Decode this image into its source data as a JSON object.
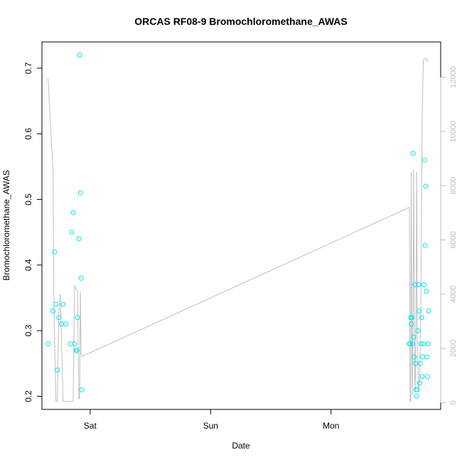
{
  "chart_data": {
    "type": "scatter",
    "title": "ORCAS RF08-9 Bromochloromethane_AWAS",
    "xlabel": "Date",
    "ylabel": "Bromochloromethane_AWAS",
    "x_unit": "days from start of Friday",
    "x_ticks": [
      {
        "value": 1,
        "label": "Sat"
      },
      {
        "value": 2,
        "label": "Sun"
      },
      {
        "value": 3,
        "label": "Mon"
      }
    ],
    "xlim": [
      0.6,
      3.91
    ],
    "ylim": [
      0.18,
      0.74
    ],
    "y_ticks": [
      0.2,
      0.3,
      0.4,
      0.5,
      0.6,
      0.7
    ],
    "y2lim": [
      -250,
      13300
    ],
    "y2_ticks": [
      0,
      2000,
      4000,
      6000,
      8000,
      10000,
      12000
    ],
    "grid": false,
    "colors": {
      "points": "#00e5ee",
      "line": "#bebebe",
      "axis": "#000000",
      "right_axis": "#bebebe"
    },
    "series": [
      {
        "kind": "points",
        "axis": "left",
        "x": [
          0.651,
          0.692,
          0.704,
          0.716,
          0.728,
          0.74,
          0.763,
          0.775,
          0.799,
          0.835,
          0.847,
          0.859,
          0.871,
          0.883,
          0.895,
          0.907,
          0.913,
          0.919,
          3.651,
          3.656,
          3.661,
          3.666,
          3.671,
          3.676,
          3.681,
          3.686,
          3.691,
          3.696,
          3.701,
          3.706,
          3.711,
          3.716,
          3.721,
          3.726,
          3.731,
          3.736,
          3.741,
          3.746,
          3.751,
          3.756,
          3.761,
          3.766,
          3.771,
          3.776,
          3.781,
          3.786,
          3.791,
          3.796,
          3.801,
          3.806,
          3.811
        ],
        "y": [
          0.28,
          0.33,
          0.42,
          0.34,
          0.24,
          0.32,
          0.31,
          0.34,
          0.31,
          0.28,
          0.45,
          0.48,
          0.28,
          0.27,
          0.32,
          0.44,
          0.72,
          0.51,
          0.28,
          0.28,
          0.32,
          0.31,
          0.32,
          0.28,
          0.57,
          0.29,
          0.26,
          0.37,
          0.25,
          0.21,
          0.2,
          0.21,
          0.3,
          0.37,
          0.33,
          0.22,
          0.25,
          0.28,
          0.32,
          0.23,
          0.26,
          0.28,
          0.37,
          0.56,
          0.43,
          0.52,
          0.36,
          0.26,
          0.23,
          0.28,
          0.33
        ]
      },
      {
        "kind": "points",
        "axis": "left",
        "x": [
          0.889,
          0.925,
          0.931
        ],
        "y": [
          0.27,
          0.38,
          0.21
        ]
      },
      {
        "kind": "line",
        "axis": "right",
        "x": [
          0.651,
          0.692,
          0.7,
          0.716,
          0.728,
          0.74,
          0.752,
          0.775,
          0.799,
          0.823,
          0.835,
          0.847,
          0.859,
          0.871,
          0.883,
          0.895,
          0.907,
          0.913,
          0.919,
          0.925,
          0.931,
          3.651,
          3.656,
          3.661,
          3.666,
          3.671,
          3.676,
          3.681,
          3.686,
          3.691,
          3.696,
          3.701,
          3.706,
          3.711,
          3.716,
          3.726,
          3.736,
          3.746,
          3.756,
          3.766,
          3.776,
          3.786,
          3.796,
          3.806,
          3.811
        ],
        "y": [
          11950,
          8500,
          3500,
          50,
          50,
          3300,
          4000,
          50,
          50,
          50,
          50,
          50,
          50,
          4300,
          4200,
          4100,
          150,
          150,
          4100,
          1800,
          1700,
          7200,
          50,
          50,
          8500,
          2500,
          300,
          3500,
          8600,
          3300,
          500,
          1000,
          3400,
          8500,
          2500,
          500,
          800,
          4000,
          10500,
          12600,
          12700,
          12700,
          12600,
          12600,
          12600
        ]
      }
    ]
  }
}
